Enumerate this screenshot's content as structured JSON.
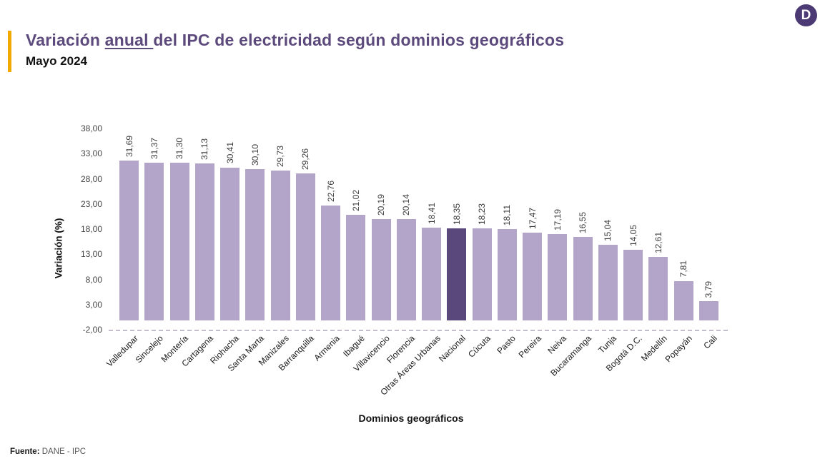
{
  "header": {
    "title_prefix": "Variación ",
    "title_underlined": "anual ",
    "title_suffix": "del IPC de electricidad según dominios geográficos",
    "subtitle": "Mayo 2024",
    "accent_color": "#F2A900",
    "title_color": "#5C4A7D"
  },
  "logo": {
    "letter": "D",
    "bg_color": "#4B3A73"
  },
  "chart_data": {
    "type": "bar",
    "title": "Variación anual del IPC de electricidad según dominios geográficos",
    "subtitle": "Mayo 2024",
    "xlabel": "Dominios geográficos",
    "ylabel": "Variación (%)",
    "ylim": [
      -2,
      38
    ],
    "ytick_step": 5,
    "ytick_labels": [
      "38,00",
      "33,00",
      "28,00",
      "23,00",
      "18,00",
      "13,00",
      "8,00",
      "3,00",
      "-2,00"
    ],
    "grid": false,
    "legend": null,
    "categories": [
      "Valledupar",
      "Sincelejo",
      "Montería",
      "Cartagena",
      "Riohacha",
      "Santa Marta",
      "Manizales",
      "Barranquilla",
      "Armenia",
      "Ibagué",
      "Villavicencio",
      "Florencia",
      "Otras Áreas Urbanas",
      "Nacional",
      "Cúcuta",
      "Pasto",
      "Pereira",
      "Neiva",
      "Bucaramanga",
      "Tunja",
      "Bogotá D.C.",
      "Medellín",
      "Popayán",
      "Cali"
    ],
    "values": [
      31.69,
      31.37,
      31.3,
      31.13,
      30.41,
      30.1,
      29.73,
      29.26,
      22.76,
      21.02,
      20.19,
      20.14,
      18.41,
      18.35,
      18.23,
      18.11,
      17.47,
      17.19,
      16.55,
      15.04,
      14.05,
      12.61,
      7.81,
      3.79
    ],
    "value_labels": [
      "31,69",
      "31,37",
      "31,30",
      "31,13",
      "30,41",
      "30,10",
      "29,73",
      "29,26",
      "22,76",
      "21,02",
      "20,19",
      "20,14",
      "18,41",
      "18,35",
      "18,23",
      "18,11",
      "17,47",
      "17,19",
      "16,55",
      "15,04",
      "14,05",
      "12,61",
      "7,81",
      "3,79"
    ],
    "bar_color": "#B2A5C9",
    "highlight_category": "Nacional",
    "highlight_color": "#5A477C"
  },
  "footer": {
    "label": "Fuente:",
    "text": "DANE - IPC"
  }
}
